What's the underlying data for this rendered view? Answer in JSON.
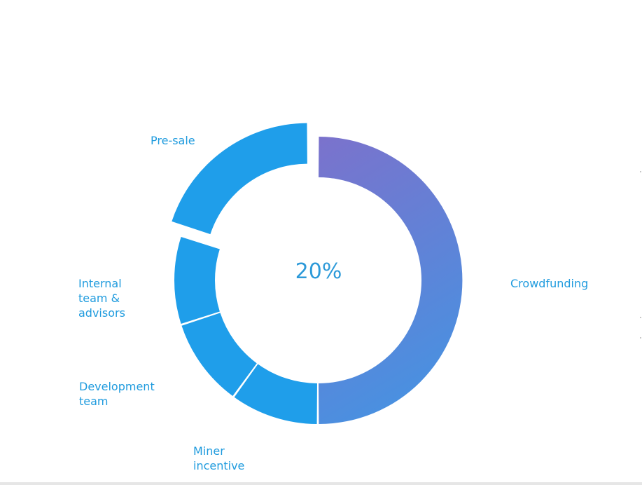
{
  "chart_data": {
    "type": "pie",
    "style": "donut",
    "segments": [
      {
        "name": "Crowdfunding",
        "value": 50,
        "color_from": "#7b72cc",
        "color_to": "#4a90e0",
        "exploded": false
      },
      {
        "name": "Miner incentive",
        "value": 10,
        "color": "#1f9eea",
        "exploded": false
      },
      {
        "name": "Development team",
        "value": 10,
        "color": "#1f9eea",
        "exploded": false
      },
      {
        "name": "Internal team & advisors",
        "value": 10,
        "color": "#1f9eea",
        "exploded": false
      },
      {
        "name": "Pre-sale",
        "value": 20,
        "color": "#1f9eea",
        "exploded": true
      }
    ],
    "labels": {
      "crowdfunding": "Crowdfunding",
      "miner": [
        "Miner",
        "incentive"
      ],
      "development": [
        "Development",
        "team"
      ],
      "internal": [
        "Internal",
        "team &",
        "advisors"
      ],
      "presale": "Pre-sale"
    },
    "center_value": "20%"
  }
}
